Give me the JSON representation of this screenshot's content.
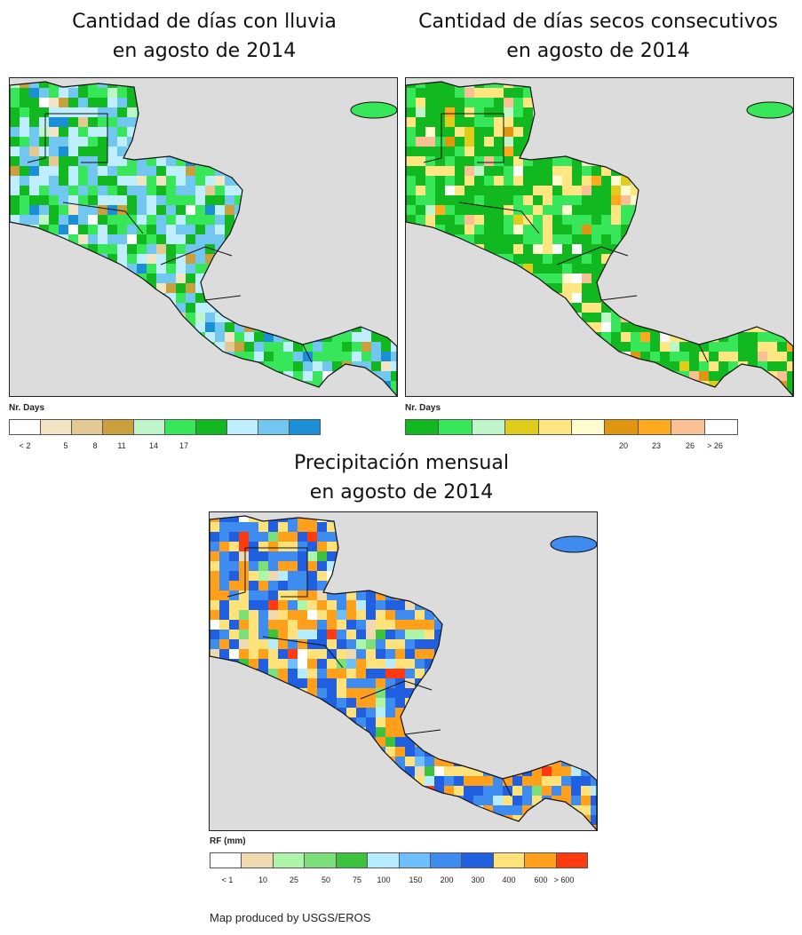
{
  "maps": [
    {
      "id": "rain_days",
      "title_line1": "Cantidad de días con lluvia",
      "title_line2": "en agosto de 2014",
      "legend_title": "Nr. Days",
      "legend_colors": [
        "#ffffff",
        "#f3e4c6",
        "#e5c995",
        "#c9a03d",
        "#bff5c8",
        "#38e659",
        "#12b81f",
        "#bfefff",
        "#72c7f0",
        "#1a8fd6"
      ],
      "legend_ticks": [
        "< 2",
        "5",
        "8",
        "11",
        "14",
        "17"
      ],
      "dominant_colors": [
        "#12b81f",
        "#38e659",
        "#bfefff",
        "#72c7f0"
      ]
    },
    {
      "id": "dry_days",
      "title_line1": "Cantidad de días secos consecutivos",
      "title_line2": "en agosto de 2014",
      "legend_title": "Nr. Days",
      "legend_colors": [
        "#12b81f",
        "#38e659",
        "#bff5c8",
        "#e0cc1a",
        "#ffe680",
        "#fffccf",
        "#e0960f",
        "#ffa91f",
        "#fbbf94",
        "#ffffff"
      ],
      "legend_ticks": [
        "20",
        "23",
        "26",
        "> 26"
      ],
      "dominant_colors": [
        "#12b81f",
        "#38e659",
        "#12b81f",
        "#ffe680"
      ]
    },
    {
      "id": "monthly_rain",
      "title_line1": "Precipitación mensual",
      "title_line2": "en agosto de 2014",
      "legend_title": "RF (mm)",
      "legend_colors": [
        "#ffffff",
        "#efd9b0",
        "#adf5a8",
        "#7cdf7a",
        "#3cc23c",
        "#b5ecff",
        "#6dbfff",
        "#3f8cf0",
        "#1f5fe0",
        "#ffe27a",
        "#ff9f1a",
        "#ff3a10"
      ],
      "legend_ticks": [
        "< 1",
        "10",
        "25",
        "50",
        "75",
        "100",
        "150",
        "200",
        "300",
        "400",
        "600",
        "> 600"
      ],
      "dominant_colors": [
        "#1f5fe0",
        "#3f8cf0",
        "#ff9f1a",
        "#ffe27a"
      ]
    }
  ],
  "credit": "Map produced by USGS/EROS",
  "colors": {
    "ocean": "#dcdcdc",
    "border": "#111111"
  }
}
